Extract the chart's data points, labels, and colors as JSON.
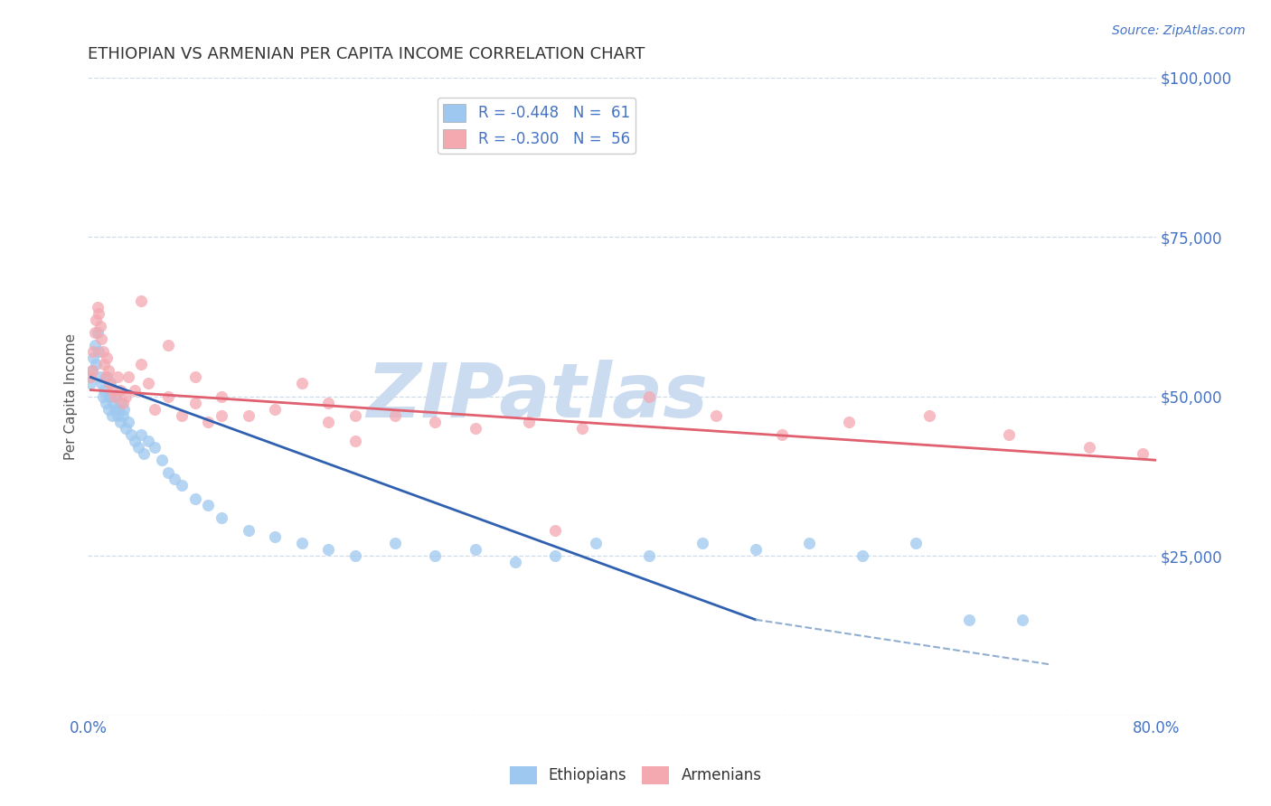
{
  "title": "ETHIOPIAN VS ARMENIAN PER CAPITA INCOME CORRELATION CHART",
  "source_text": "Source: ZipAtlas.com",
  "ylabel": "Per Capita Income",
  "xlim": [
    0.0,
    0.8
  ],
  "ylim": [
    0,
    100000
  ],
  "xticks": [
    0.0,
    0.8
  ],
  "xticklabels": [
    "0.0%",
    "80.0%"
  ],
  "yticks": [
    0,
    25000,
    50000,
    75000,
    100000
  ],
  "yticklabels": [
    "",
    "$25,000",
    "$50,000",
    "$75,000",
    "$100,000"
  ],
  "legend_entries": [
    {
      "label": "R = -0.448   N =  61",
      "color": "#9ec8ef"
    },
    {
      "label": "R = -0.300   N =  56",
      "color": "#f4a8b0"
    }
  ],
  "bottom_legend": [
    "Ethiopians",
    "Armenians"
  ],
  "bottom_legend_colors": [
    "#9ec8ef",
    "#f4a8b0"
  ],
  "title_color": "#333333",
  "axis_color": "#4472c4",
  "grid_color": "#c8d8ec",
  "watermark": "ZIPatlas",
  "watermark_color": "#ccdcf0",
  "ethiopian_x": [
    0.002,
    0.003,
    0.004,
    0.005,
    0.006,
    0.007,
    0.008,
    0.009,
    0.01,
    0.011,
    0.012,
    0.013,
    0.014,
    0.015,
    0.016,
    0.017,
    0.018,
    0.019,
    0.02,
    0.021,
    0.022,
    0.023,
    0.024,
    0.025,
    0.026,
    0.027,
    0.028,
    0.03,
    0.032,
    0.035,
    0.038,
    0.04,
    0.042,
    0.045,
    0.05,
    0.055,
    0.06,
    0.065,
    0.07,
    0.08,
    0.09,
    0.1,
    0.12,
    0.14,
    0.16,
    0.18,
    0.2,
    0.23,
    0.26,
    0.29,
    0.32,
    0.35,
    0.38,
    0.42,
    0.46,
    0.5,
    0.54,
    0.58,
    0.62,
    0.66,
    0.7
  ],
  "ethiopian_y": [
    52000,
    54000,
    56000,
    58000,
    55000,
    60000,
    57000,
    53000,
    52000,
    50000,
    51000,
    49000,
    53000,
    48000,
    50000,
    52000,
    47000,
    49000,
    48000,
    50000,
    47000,
    48000,
    46000,
    49000,
    47000,
    48000,
    45000,
    46000,
    44000,
    43000,
    42000,
    44000,
    41000,
    43000,
    42000,
    40000,
    38000,
    37000,
    36000,
    34000,
    33000,
    31000,
    29000,
    28000,
    27000,
    26000,
    25000,
    27000,
    25000,
    26000,
    24000,
    25000,
    27000,
    25000,
    27000,
    26000,
    27000,
    25000,
    27000,
    15000,
    15000
  ],
  "armenian_x": [
    0.002,
    0.003,
    0.004,
    0.005,
    0.006,
    0.007,
    0.008,
    0.009,
    0.01,
    0.011,
    0.012,
    0.013,
    0.014,
    0.015,
    0.016,
    0.018,
    0.02,
    0.022,
    0.024,
    0.026,
    0.028,
    0.03,
    0.035,
    0.04,
    0.045,
    0.05,
    0.06,
    0.07,
    0.08,
    0.09,
    0.1,
    0.12,
    0.14,
    0.16,
    0.18,
    0.2,
    0.23,
    0.26,
    0.29,
    0.33,
    0.37,
    0.42,
    0.47,
    0.52,
    0.57,
    0.63,
    0.69,
    0.75,
    0.79,
    0.1,
    0.18,
    0.04,
    0.06,
    0.08,
    0.2,
    0.35
  ],
  "armenian_y": [
    53000,
    54000,
    57000,
    60000,
    62000,
    64000,
    63000,
    61000,
    59000,
    57000,
    55000,
    53000,
    56000,
    54000,
    52000,
    51000,
    50000,
    53000,
    51000,
    49000,
    50000,
    53000,
    51000,
    55000,
    52000,
    48000,
    50000,
    47000,
    49000,
    46000,
    50000,
    47000,
    48000,
    52000,
    49000,
    47000,
    47000,
    46000,
    45000,
    46000,
    45000,
    50000,
    47000,
    44000,
    46000,
    47000,
    44000,
    42000,
    41000,
    47000,
    46000,
    65000,
    58000,
    53000,
    43000,
    29000
  ],
  "blue_line_x": [
    0.002,
    0.5
  ],
  "blue_line_y": [
    53000,
    15000
  ],
  "pink_line_x": [
    0.002,
    0.8
  ],
  "pink_line_y": [
    51000,
    40000
  ],
  "dashed_line_x": [
    0.5,
    0.72
  ],
  "dashed_line_y": [
    15000,
    8000
  ]
}
